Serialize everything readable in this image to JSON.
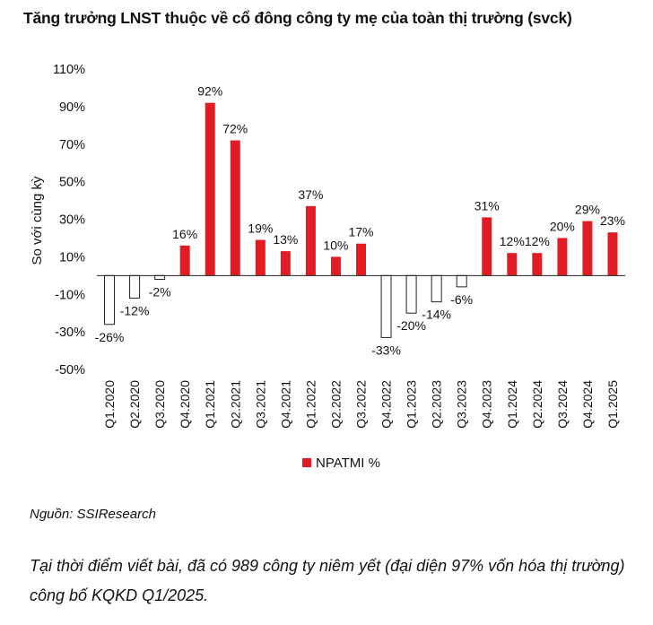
{
  "header": {
    "title": "Tăng trưởng LNST thuộc về cổ đông công ty mẹ của toàn thị trường (svck)"
  },
  "chart_data": {
    "type": "bar",
    "ylabel": "So với cùng kỳ",
    "xlabel": "",
    "ylim": [
      -50,
      110
    ],
    "yticks": [
      110,
      90,
      70,
      50,
      30,
      10,
      -10,
      -30,
      -50
    ],
    "ytick_labels": [
      "110%",
      "90%",
      "70%",
      "50%",
      "30%",
      "10%",
      "-10%",
      "-30%",
      "-50%"
    ],
    "categories": [
      "Q1.2020",
      "Q2.2020",
      "Q3.2020",
      "Q4.2020",
      "Q1.2021",
      "Q2.2021",
      "Q3.2021",
      "Q4.2021",
      "Q1.2022",
      "Q2.2022",
      "Q3.2022",
      "Q4.2022",
      "Q1.2023",
      "Q2.2023",
      "Q3.2023",
      "Q4.2023",
      "Q1.2024",
      "Q2.2024",
      "Q3.2024",
      "Q4.2024",
      "Q1.2025"
    ],
    "series": [
      {
        "name": "NPATMI %",
        "values": [
          -26,
          -12,
          -2,
          16,
          92,
          72,
          19,
          13,
          37,
          10,
          17,
          -33,
          -20,
          -14,
          -6,
          31,
          12,
          12,
          20,
          29,
          23
        ]
      }
    ],
    "data_labels": [
      "-26%",
      "-12%",
      "-2%",
      "16%",
      "92%",
      "72%",
      "19%",
      "13%",
      "37%",
      "10%",
      "17%",
      "-33%",
      "-20%",
      "-14%",
      "-6%",
      "31%",
      "12%",
      "12%",
      "20%",
      "29%",
      "23%"
    ],
    "colors": {
      "positive": "#e31b23",
      "negative_fill": "#ffffff",
      "negative_stroke": "#222222",
      "axis": "#222222"
    },
    "legend": {
      "label": "NPATMI %",
      "position": "bottom"
    },
    "grid": false
  },
  "footer": {
    "source": "Nguồn: SSIResearch",
    "note": "Tại thời điểm viết bài, đã có 989 công ty niêm yết (đại diện 97% vốn hóa thị trường) công bố KQKD Q1/2025."
  }
}
